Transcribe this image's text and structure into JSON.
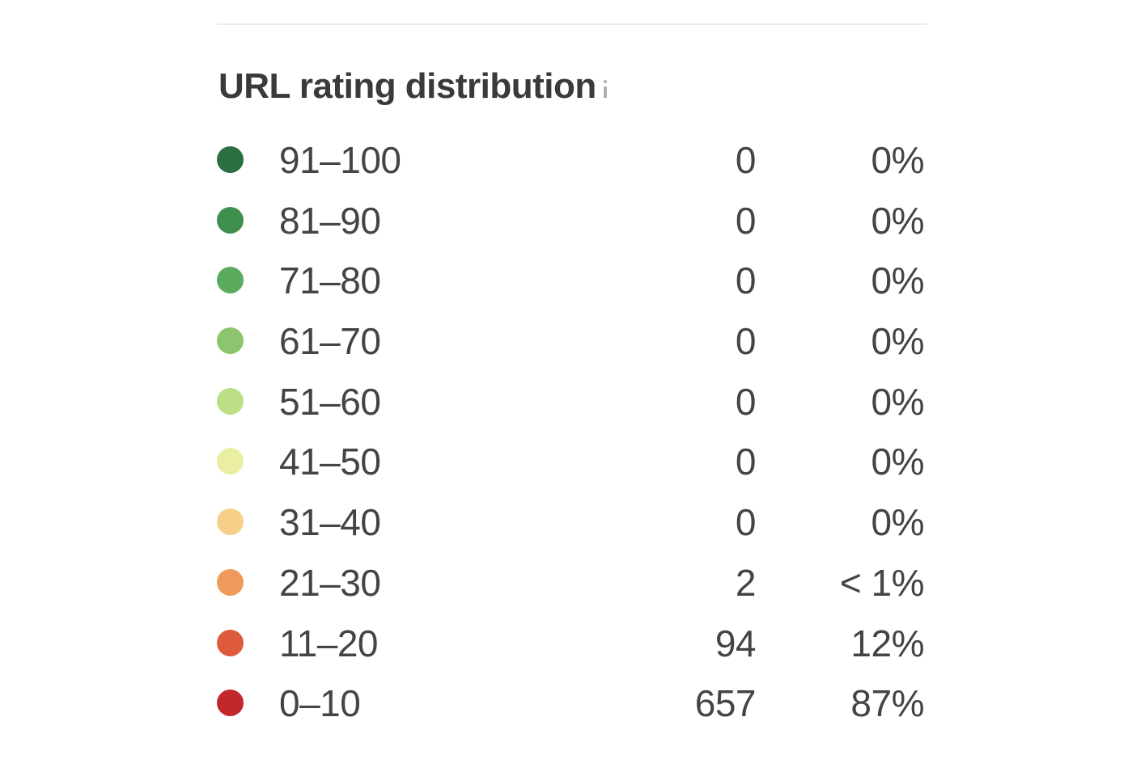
{
  "panel": {
    "title": "URL rating distribution",
    "info_icon": "info-icon",
    "rows": [
      {
        "range": "91–100",
        "count": "0",
        "percent": "0%",
        "color": "#2b6e3f"
      },
      {
        "range": "81–90",
        "count": "0",
        "percent": "0%",
        "color": "#3f8f4f"
      },
      {
        "range": "71–80",
        "count": "0",
        "percent": "0%",
        "color": "#5aab5e"
      },
      {
        "range": "61–70",
        "count": "0",
        "percent": "0%",
        "color": "#8cc56d"
      },
      {
        "range": "51–60",
        "count": "0",
        "percent": "0%",
        "color": "#bcdf86"
      },
      {
        "range": "41–50",
        "count": "0",
        "percent": "0%",
        "color": "#eaeea3"
      },
      {
        "range": "31–40",
        "count": "0",
        "percent": "0%",
        "color": "#f6cf88"
      },
      {
        "range": "21–30",
        "count": "2",
        "percent": "< 1%",
        "color": "#ef9a5a"
      },
      {
        "range": "11–20",
        "count": "94",
        "percent": "12%",
        "color": "#dd5a3c"
      },
      {
        "range": "0–10",
        "count": "657",
        "percent": "87%",
        "color": "#c1272d"
      }
    ]
  }
}
